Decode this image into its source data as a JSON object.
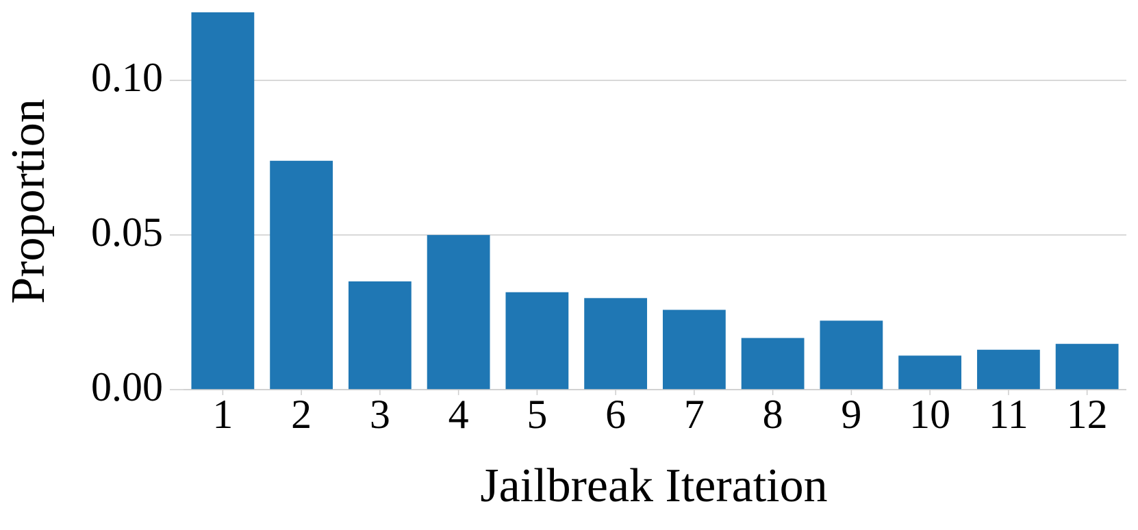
{
  "chart_data": {
    "type": "bar",
    "x_label": "Jailbreak Iteration",
    "y_label": "Proportion",
    "categories": [
      "1",
      "2",
      "3",
      "4",
      "5",
      "6",
      "7",
      "8",
      "9",
      "10",
      "11",
      "12"
    ],
    "values": [
      0.122,
      0.074,
      0.035,
      0.05,
      0.0315,
      0.0296,
      0.0258,
      0.0167,
      0.0223,
      0.011,
      0.0129,
      0.0148
    ],
    "color": "#1f77b4",
    "ylim": [
      0,
      0.122
    ],
    "yticks": [
      {
        "value": 0,
        "label": "0.00"
      },
      {
        "value": 0.05,
        "label": "0.05"
      },
      {
        "value": 0.1,
        "label": "0.10"
      }
    ],
    "grid": true
  }
}
